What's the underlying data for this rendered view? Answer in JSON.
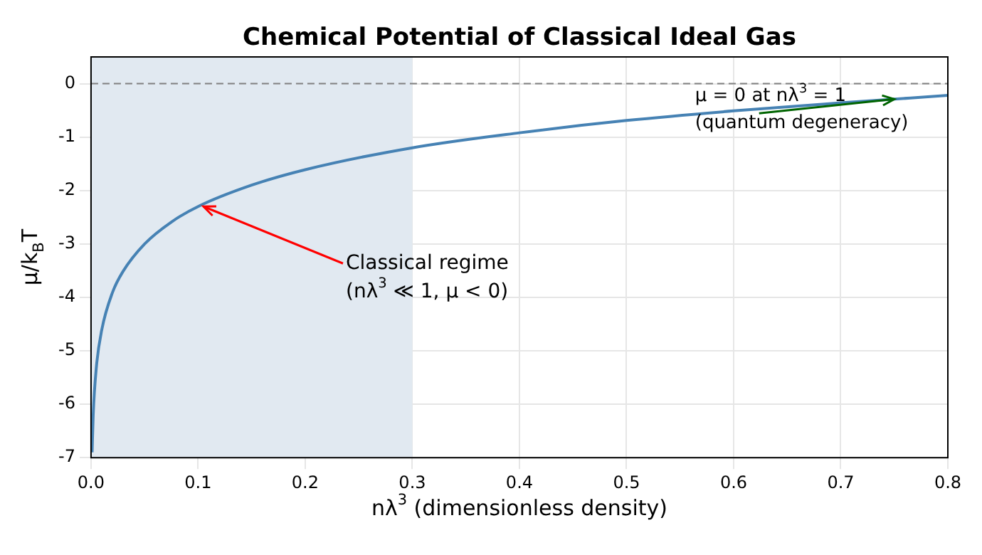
{
  "chart_data": {
    "type": "line",
    "title": "Chemical Potential of Classical Ideal Gas",
    "xlabel": "nλ$^{3}$ (dimensionless density)",
    "ylabel": "μ/k$_{B}$T",
    "series": [
      {
        "color": "#4682b4",
        "x": [
          0.001,
          0.002,
          0.005,
          0.01,
          0.02,
          0.03,
          0.05,
          0.075,
          0.1,
          0.15,
          0.2,
          0.3,
          0.4,
          0.5,
          0.6,
          0.7,
          0.8
        ],
        "values": [
          -6.9,
          -6.21,
          -5.3,
          -4.61,
          -3.91,
          -3.51,
          -3.0,
          -2.59,
          -2.3,
          -1.9,
          -1.61,
          -1.2,
          -0.92,
          -0.69,
          -0.51,
          -0.36,
          -0.22
        ]
      }
    ],
    "xlim": [
      0,
      0.8
    ],
    "xticks": [
      {
        "value": 0,
        "label": "0.0"
      },
      {
        "value": 0.1,
        "label": "0.1"
      },
      {
        "value": 0.2,
        "label": "0.2"
      },
      {
        "value": 0.3,
        "label": "0.3"
      },
      {
        "value": 0.4,
        "label": "0.4"
      },
      {
        "value": 0.5,
        "label": "0.5"
      },
      {
        "value": 0.6,
        "label": "0.6"
      },
      {
        "value": 0.7,
        "label": "0.7"
      },
      {
        "value": 0.8,
        "label": "0.8"
      }
    ],
    "ylim": [
      -7,
      0.5
    ],
    "yticks": [
      -7,
      -6,
      -5,
      -4,
      -3,
      -2,
      -1,
      0
    ],
    "ref_lines": [
      {
        "axis": "y",
        "value": 0,
        "color": "#808080",
        "line_style": "dashed"
      }
    ],
    "bands": [
      {
        "axis": "x",
        "from": 0,
        "to": 0.3,
        "color": "#e1e9f1"
      }
    ],
    "annotations": [
      {
        "text": "μ = 0 at nλ$^{3}$ = 1\n(quantum degeneracy)",
        "x": 0.75,
        "y": -0.29
      },
      {
        "text": "Classical regime\n(nλ$^{3}$ ≪ 1, μ < 0)",
        "x": 0.105,
        "y": -2.3
      }
    ],
    "grid": true,
    "legend": false,
    "marker": "none",
    "line_style": "solid"
  }
}
